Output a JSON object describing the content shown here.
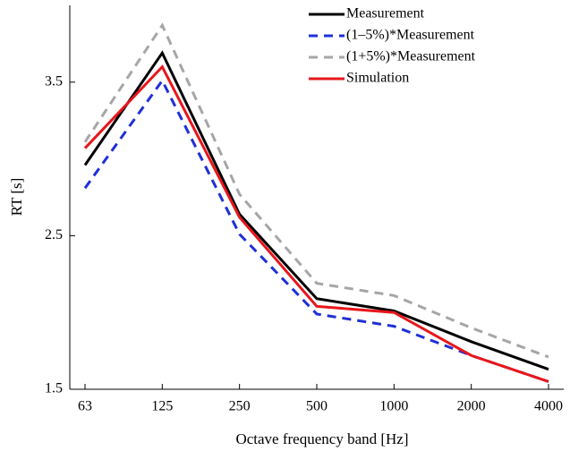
{
  "chart_data": {
    "type": "line",
    "xlabel": "Octave frequency band [Hz]",
    "ylabel": "RT [s]",
    "categories": [
      "63",
      "125",
      "250",
      "500",
      "1000",
      "2000",
      "4000"
    ],
    "ylim": [
      1.5,
      4.0
    ],
    "yticks": [
      1.5,
      2.5,
      3.5
    ],
    "legend": "upper right",
    "series": [
      {
        "name": "Measurement",
        "color": "#000000",
        "dash": "solid",
        "values": [
          2.96,
          3.69,
          2.64,
          2.09,
          2.01,
          1.81,
          1.63
        ]
      },
      {
        "name": "(1–5%)*Measurement",
        "color": "#1f2fd6",
        "dash": "dashed",
        "values": [
          2.81,
          3.51,
          2.51,
          1.99,
          1.91,
          1.72,
          1.55
        ]
      },
      {
        "name": "(1+5%)*Measurement",
        "color": "#a6a6a6",
        "dash": "dashed",
        "values": [
          3.11,
          3.87,
          2.77,
          2.19,
          2.11,
          1.9,
          1.71
        ]
      },
      {
        "name": "Simulation",
        "color": "#e8161b",
        "dash": "solid",
        "values": [
          3.07,
          3.6,
          2.62,
          2.04,
          2.0,
          1.72,
          1.55
        ]
      }
    ]
  }
}
